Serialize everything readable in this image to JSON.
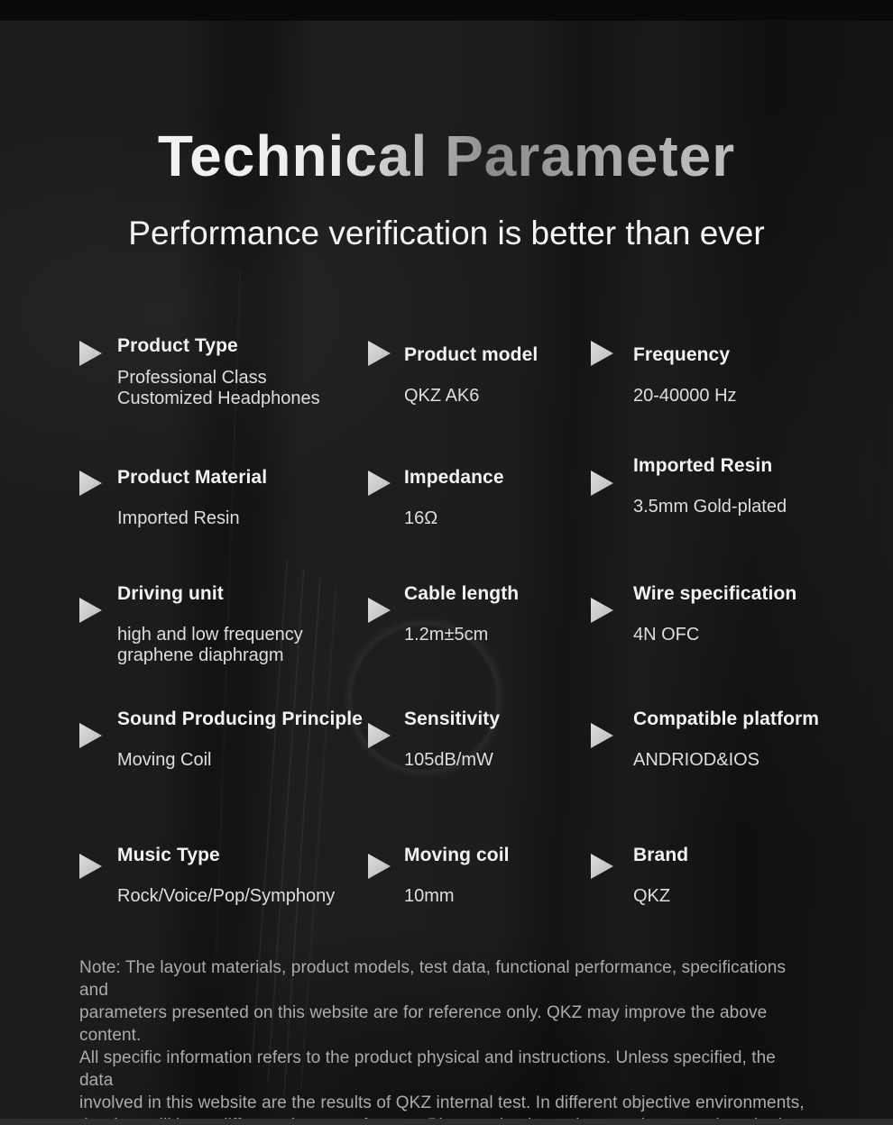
{
  "header": {
    "title": "Technical Parameter",
    "subtitle": "Performance verification is better than ever"
  },
  "specs": [
    {
      "label": "Product Type",
      "value": "Professional Class Customized Headphones"
    },
    {
      "label": "Product model",
      "value": "QKZ AK6"
    },
    {
      "label": "Frequency",
      "value": "20-40000 Hz"
    },
    {
      "label": "Product Material",
      "value": "Imported Resin"
    },
    {
      "label": "Impedance",
      "value": "16Ω"
    },
    {
      "label": "Imported Resin",
      "value": "3.5mm Gold-plated"
    },
    {
      "label": "Driving unit",
      "value": "high and low frequency graphene diaphragm"
    },
    {
      "label": "Cable length",
      "value": "1.2m±5cm"
    },
    {
      "label": "Wire specification",
      "value": "4N OFC"
    },
    {
      "label": "Sound Producing Principle",
      "value": "Moving Coil"
    },
    {
      "label": "Sensitivity",
      "value": "105dB/mW"
    },
    {
      "label": "Compatible platform",
      "value": "ANDRIOD&IOS"
    },
    {
      "label": "Music Type",
      "value": "Rock/Voice/Pop/Symphony"
    },
    {
      "label": "Moving coil",
      "value": "10mm"
    },
    {
      "label": "Brand",
      "value": "QKZ"
    }
  ],
  "note": {
    "lines": [
      "Note: The layout materials, product models, test data, functional performance, specifications and",
      "parameters presented on this website are for reference only. QKZ may improve the above content.",
      "All specific information refers to the product physical and instructions. Unless specified, the data",
      "involved in this website are the results of QKZ internal test. In different objective environments,",
      "the data will have different degrees of errors. Please take the entity experience as the criterion."
    ]
  },
  "icons": {
    "bullet": "triangle-right-icon"
  },
  "colors": {
    "background": "#181818",
    "top_bar": "#0a0a0a",
    "bottom_bar": "#2e2e2e",
    "label_text": "#f3f3f3",
    "value_text": "#dedede",
    "note_text": "#ababab",
    "triangle": "#cccccc",
    "title_gradient_start": "#f7f7f7",
    "title_gradient_end": "#8b8b8b"
  }
}
